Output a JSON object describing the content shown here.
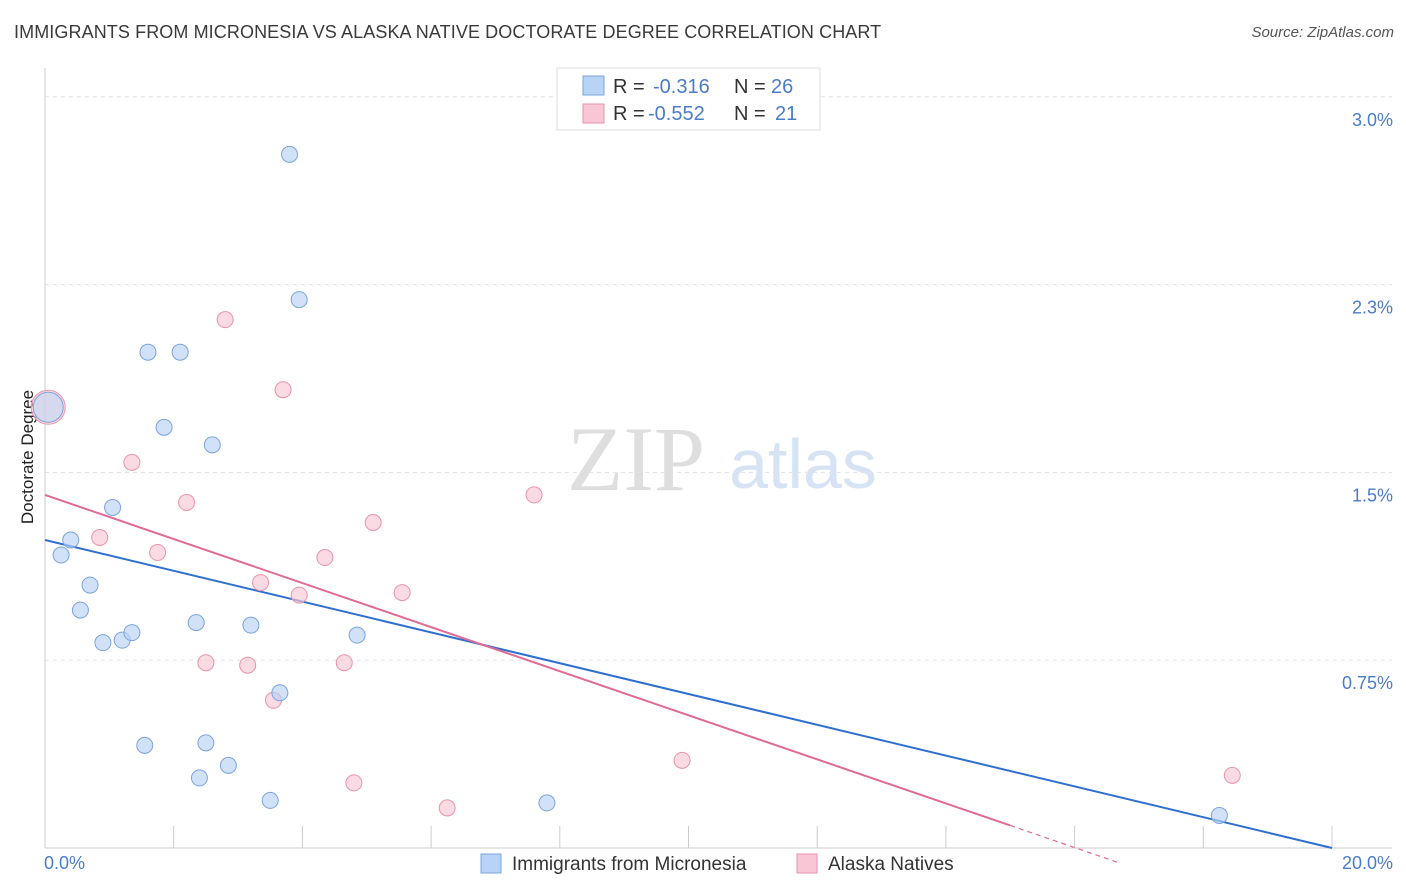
{
  "header": {
    "title": "IMMIGRANTS FROM MICRONESIA VS ALASKA NATIVE DOCTORATE DEGREE CORRELATION CHART",
    "source": "Source: ZipAtlas.com"
  },
  "watermark": {
    "zip": "ZIP",
    "atlas": "atlas"
  },
  "colors": {
    "blue": "#4a7cc9",
    "blue_fill": "#b8d3f5",
    "blue_stroke": "#7aa4dc",
    "blue_line": "#2e6fcf",
    "pink_fill": "#f8c6d4",
    "pink_stroke": "#e893ad",
    "pink_line": "#e06a96",
    "grid": "#dde3ea",
    "axis": "#cccccc"
  },
  "stats": {
    "series_a": {
      "r_label": "R =",
      "r_value": "-0.316",
      "n_label": "N =",
      "n_value": "26"
    },
    "series_b": {
      "r_label": "R =",
      "r_value": "-0.552",
      "n_label": "N =",
      "n_value": "21"
    }
  },
  "chart_data": {
    "type": "scatter",
    "title": "IMMIGRANTS FROM MICRONESIA VS ALASKA NATIVE DOCTORATE DEGREE CORRELATION CHART",
    "xlabel": "",
    "ylabel": "Doctorate Degree",
    "xlim": [
      0,
      20
    ],
    "ylim": [
      0,
      3.0
    ],
    "x_tick_labels": [
      "0.0%",
      "20.0%"
    ],
    "y_ticks": [
      {
        "value": 3.0,
        "label": "3.0%"
      },
      {
        "value": 2.25,
        "label": "2.3%"
      },
      {
        "value": 1.5,
        "label": "1.5%"
      },
      {
        "value": 0.75,
        "label": "0.75%"
      }
    ],
    "legend_position": "bottom",
    "series": [
      {
        "name": "Immigrants from Micronesia",
        "color": "#b8d3f5",
        "points": [
          [
            0.05,
            1.76
          ],
          [
            0.25,
            1.17
          ],
          [
            0.4,
            1.23
          ],
          [
            0.55,
            0.95
          ],
          [
            0.7,
            1.05
          ],
          [
            0.9,
            0.82
          ],
          [
            1.05,
            1.36
          ],
          [
            1.2,
            0.83
          ],
          [
            1.35,
            0.86
          ],
          [
            1.55,
            0.41
          ],
          [
            1.6,
            1.98
          ],
          [
            1.85,
            1.68
          ],
          [
            2.1,
            1.98
          ],
          [
            2.35,
            0.9
          ],
          [
            2.4,
            0.28
          ],
          [
            2.5,
            0.42
          ],
          [
            2.6,
            1.61
          ],
          [
            2.85,
            0.33
          ],
          [
            3.2,
            0.89
          ],
          [
            3.5,
            0.19
          ],
          [
            3.65,
            0.62
          ],
          [
            3.8,
            2.77
          ],
          [
            3.95,
            2.19
          ],
          [
            4.85,
            0.85
          ],
          [
            7.8,
            0.18
          ],
          [
            18.25,
            0.13
          ]
        ],
        "trend": {
          "x": [
            0,
            20
          ],
          "y": [
            1.23,
            0.0
          ]
        }
      },
      {
        "name": "Alaska Natives",
        "color": "#f8c6d4",
        "points": [
          [
            0.05,
            1.76
          ],
          [
            0.85,
            1.24
          ],
          [
            1.35,
            1.54
          ],
          [
            1.75,
            1.18
          ],
          [
            2.2,
            1.38
          ],
          [
            2.5,
            0.74
          ],
          [
            2.8,
            2.11
          ],
          [
            3.15,
            0.73
          ],
          [
            3.35,
            1.06
          ],
          [
            3.55,
            0.59
          ],
          [
            3.7,
            1.83
          ],
          [
            3.95,
            1.01
          ],
          [
            4.35,
            1.16
          ],
          [
            4.65,
            0.74
          ],
          [
            4.8,
            0.26
          ],
          [
            5.1,
            1.3
          ],
          [
            5.55,
            1.02
          ],
          [
            6.25,
            0.16
          ],
          [
            7.6,
            1.41
          ],
          [
            9.9,
            0.35
          ],
          [
            18.45,
            0.29
          ]
        ],
        "trend": {
          "x": [
            0,
            15
          ],
          "y": [
            1.41,
            0.09
          ]
        },
        "trend_dashed": {
          "x": [
            15,
            16.7
          ],
          "y": [
            0.09,
            -0.06
          ]
        }
      }
    ]
  }
}
